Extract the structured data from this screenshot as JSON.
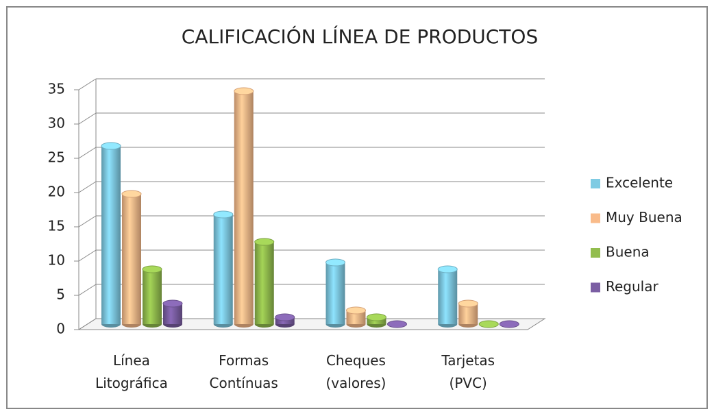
{
  "chart_data": {
    "type": "bar3d",
    "title": "CALIFICACIÓN LÍNEA DE PRODUCTOS",
    "categories": [
      "Línea Litográfica",
      "Formas Contínuas",
      "Cheques (valores)",
      "Tarjetas (PVC)"
    ],
    "series": [
      {
        "name": "Excelente",
        "color": "#7fcbe3",
        "values": [
          26,
          16,
          9,
          8
        ]
      },
      {
        "name": "Muy Buena",
        "color": "#f9bb8a",
        "values": [
          19,
          34,
          2,
          3
        ]
      },
      {
        "name": "Buena",
        "color": "#92bd4e",
        "values": [
          8,
          12,
          1,
          0
        ]
      },
      {
        "name": "Regular",
        "color": "#7b5ea3",
        "values": [
          3,
          1,
          0,
          0
        ]
      }
    ],
    "ylim": [
      0,
      35
    ],
    "yticks": [
      0,
      5,
      10,
      15,
      20,
      25,
      30,
      35
    ],
    "grid": true,
    "legend": "right"
  }
}
